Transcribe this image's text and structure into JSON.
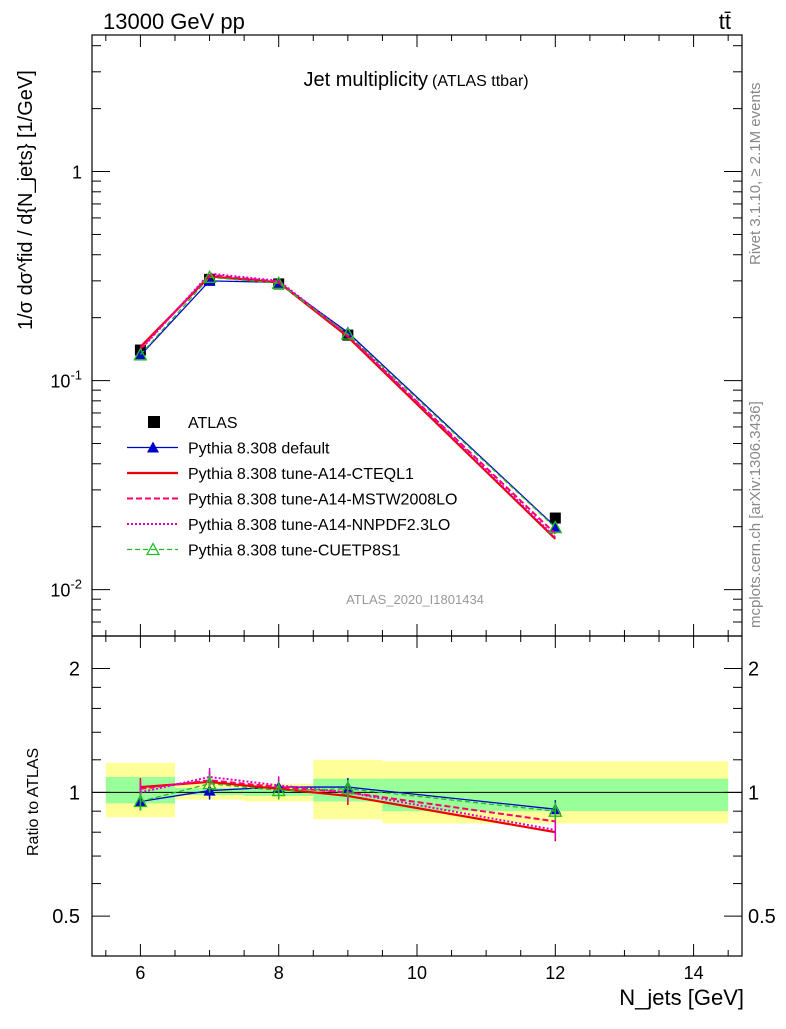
{
  "header": {
    "energy_label": "13000 GeV pp",
    "process_label": "tt̄",
    "side_text_top": "Rivet 3.1.10, ≥ 2.1M events",
    "side_text_bottom": "mcplots.cern.ch [arXiv:1306.3436]"
  },
  "chart_data": [
    {
      "type": "line",
      "title": "Jet multiplicity",
      "subtitle": "(ATLAS ttbar)",
      "ylabel": "1/σ dσ^fid / d{N_jets} [1/GeV]",
      "yscale": "log",
      "ylim": [
        0.006,
        4.5
      ],
      "xlim": [
        5.3,
        14.7
      ],
      "y_tick_labels": [
        "1",
        "10^-1",
        "10^-2"
      ],
      "analysis_label": "ATLAS_2020_I1801434",
      "legend_position": "center-left",
      "x": [
        6,
        7,
        8,
        9,
        12
      ],
      "series": [
        {
          "name": "ATLAS",
          "color": "#000000",
          "values": [
            0.14,
            0.305,
            0.29,
            0.165,
            0.022
          ]
        },
        {
          "name": "Pythia 8.308 default",
          "color": "#0000cc",
          "values": [
            0.132,
            0.3,
            0.295,
            0.17,
            0.02
          ]
        },
        {
          "name": "Pythia 8.308 tune-A14-CTEQL1",
          "color": "#ee0000",
          "values": [
            0.145,
            0.315,
            0.295,
            0.162,
            0.0175
          ]
        },
        {
          "name": "Pythia 8.308 tune-A14-MSTW2008LO",
          "color": "#ff0066",
          "values": [
            0.142,
            0.32,
            0.297,
            0.164,
            0.0185
          ]
        },
        {
          "name": "Pythia 8.308 tune-A14-NNPDF2.3LO",
          "color": "#dd00cc",
          "values": [
            0.14,
            0.325,
            0.3,
            0.166,
            0.0178
          ]
        },
        {
          "name": "Pythia 8.308 tune-CUETP8S1",
          "color": "#22bb22",
          "values": [
            0.133,
            0.312,
            0.292,
            0.167,
            0.0198
          ]
        }
      ]
    },
    {
      "type": "line",
      "ylabel": "Ratio to ATLAS",
      "xlabel": "N_jets [GeV]",
      "yscale": "log",
      "ylim": [
        0.4,
        2.4
      ],
      "xlim": [
        5.3,
        14.7
      ],
      "x_tick_labels": [
        "6",
        "8",
        "10",
        "12",
        "14"
      ],
      "y_tick_labels": [
        "2",
        "1",
        "0.5"
      ],
      "bands": [
        {
          "x_range": [
            5.5,
            6.5
          ],
          "stat": [
            0.94,
            1.09
          ],
          "total": [
            0.87,
            1.18
          ]
        },
        {
          "x_range": [
            6.5,
            7.5
          ],
          "stat": [
            0.985,
            1.025
          ],
          "total": [
            0.96,
            1.05
          ]
        },
        {
          "x_range": [
            7.5,
            8.5
          ],
          "stat": [
            0.98,
            1.02
          ],
          "total": [
            0.95,
            1.05
          ]
        },
        {
          "x_range": [
            8.5,
            9.5
          ],
          "stat": [
            0.95,
            1.08
          ],
          "total": [
            0.86,
            1.2
          ]
        },
        {
          "x_range": [
            9.5,
            14.5
          ],
          "stat": [
            0.9,
            1.08
          ],
          "total": [
            0.84,
            1.19
          ]
        }
      ],
      "x": [
        6,
        7,
        8,
        9,
        12
      ],
      "series": [
        {
          "name": "Pythia 8.308 default",
          "color": "#0000cc",
          "values": [
            0.95,
            1.01,
            1.03,
            1.03,
            0.91
          ]
        },
        {
          "name": "Pythia 8.308 tune-A14-CTEQL1",
          "color": "#ee0000",
          "values": [
            1.03,
            1.06,
            1.02,
            0.98,
            0.8
          ]
        },
        {
          "name": "Pythia 8.308 tune-A14-MSTW2008LO",
          "color": "#ff0066",
          "values": [
            1.02,
            1.07,
            1.03,
            1.0,
            0.85
          ]
        },
        {
          "name": "Pythia 8.308 tune-A14-NNPDF2.3LO",
          "color": "#dd00cc",
          "values": [
            1.0,
            1.09,
            1.04,
            1.0,
            0.81
          ]
        },
        {
          "name": "Pythia 8.308 tune-CUETP8S1",
          "color": "#22bb22",
          "values": [
            0.95,
            1.05,
            1.01,
            1.02,
            0.9
          ]
        }
      ]
    }
  ]
}
